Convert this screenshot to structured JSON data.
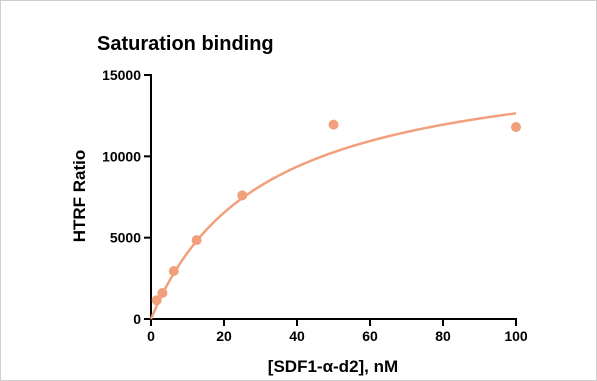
{
  "chart_data": {
    "type": "scatter",
    "title": "Saturation binding",
    "xlabel": "[SDF1-α-d2], nM",
    "ylabel": "HTRF Ratio",
    "xlim": [
      0,
      100
    ],
    "ylim": [
      0,
      15000
    ],
    "x_ticks": [
      0,
      20,
      40,
      60,
      80,
      100
    ],
    "y_ticks": [
      0,
      5000,
      10000,
      15000
    ],
    "x_tick_labels": [
      "0",
      "20",
      "40",
      "60",
      "80",
      "100"
    ],
    "y_tick_labels": [
      "0",
      "5000",
      "10000",
      "15000"
    ],
    "grid": false,
    "color": "#F2A07B",
    "series": [
      {
        "x": [
          1.5625,
          3.125,
          6.25,
          12.5,
          25,
          50,
          100
        ],
        "y": [
          1150,
          1600,
          2950,
          4850,
          7600,
          11950,
          11800
        ]
      }
    ],
    "fit": {
      "model": "one-site specific binding",
      "Bmax": 16500,
      "Kd": 30.5
    }
  }
}
